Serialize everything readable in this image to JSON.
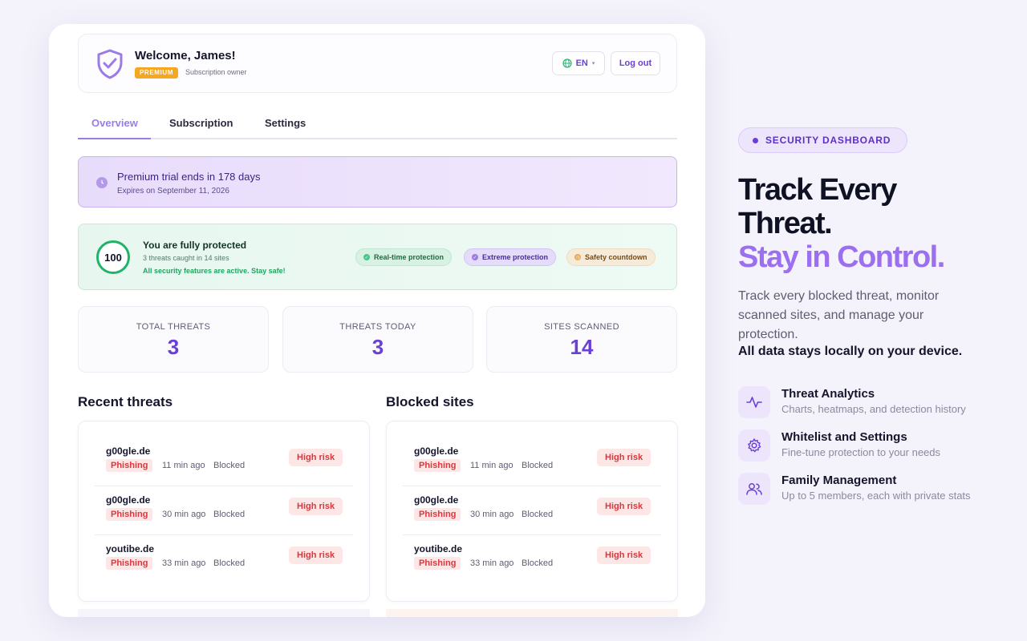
{
  "colors": {
    "accent": "#6a3fd6",
    "accent_light": "#9b7be6",
    "success": "#22b36b",
    "danger": "#d6393e",
    "warning": "#f5a623"
  },
  "header": {
    "welcome": "Welcome, James!",
    "badge": "PREMIUM",
    "role": "Subscription owner",
    "lang": "EN",
    "logout": "Log out"
  },
  "tabs": [
    {
      "label": "Overview",
      "active": true
    },
    {
      "label": "Subscription",
      "active": false
    },
    {
      "label": "Settings",
      "active": false
    }
  ],
  "trial": {
    "title": "Premium trial ends in 178 days",
    "subtitle": "Expires on September 11, 2026"
  },
  "protection": {
    "score": "100",
    "title": "You are fully protected",
    "subtitle": "3 threats caught in 14 sites",
    "note": "All security features are active. Stay safe!",
    "pills": [
      "Real-time protection",
      "Extreme protection",
      "Safety countdown"
    ]
  },
  "stats": [
    {
      "label": "TOTAL THREATS",
      "value": "3"
    },
    {
      "label": "THREATS TODAY",
      "value": "3"
    },
    {
      "label": "SITES SCANNED",
      "value": "14"
    }
  ],
  "recent_threats": {
    "title": "Recent threats",
    "rows": [
      {
        "site": "g00gle.de",
        "category": "Phishing",
        "time": "11 min ago",
        "status": "Blocked",
        "risk": "High risk"
      },
      {
        "site": "g00gle.de",
        "category": "Phishing",
        "time": "30 min ago",
        "status": "Blocked",
        "risk": "High risk"
      },
      {
        "site": "youtibe.de",
        "category": "Phishing",
        "time": "33 min ago",
        "status": "Blocked",
        "risk": "High risk"
      }
    ]
  },
  "blocked_sites": {
    "title": "Blocked sites",
    "rows": [
      {
        "site": "g00gle.de",
        "category": "Phishing",
        "time": "11 min ago",
        "status": "Blocked",
        "risk": "High risk"
      },
      {
        "site": "g00gle.de",
        "category": "Phishing",
        "time": "30 min ago",
        "status": "Blocked",
        "risk": "High risk"
      },
      {
        "site": "youtibe.de",
        "category": "Phishing",
        "time": "33 min ago",
        "status": "Blocked",
        "risk": "High risk"
      }
    ]
  },
  "promo": {
    "eyebrow": "SECURITY DASHBOARD",
    "headline_1": "Track Every",
    "headline_2": "Threat.",
    "headline_3": "Stay in Control.",
    "description": "Track every blocked threat, monitor scanned sites, and manage your protection.",
    "description_strong": "All data stays locally on your device.",
    "features": [
      {
        "icon": "activity-icon",
        "title": "Threat Analytics",
        "subtitle": "Charts, heatmaps, and detection history"
      },
      {
        "icon": "gear-icon",
        "title": "Whitelist and Settings",
        "subtitle": "Fine-tune protection to your needs"
      },
      {
        "icon": "users-icon",
        "title": "Family Management",
        "subtitle": "Up to 5 members, each with private stats"
      }
    ]
  }
}
